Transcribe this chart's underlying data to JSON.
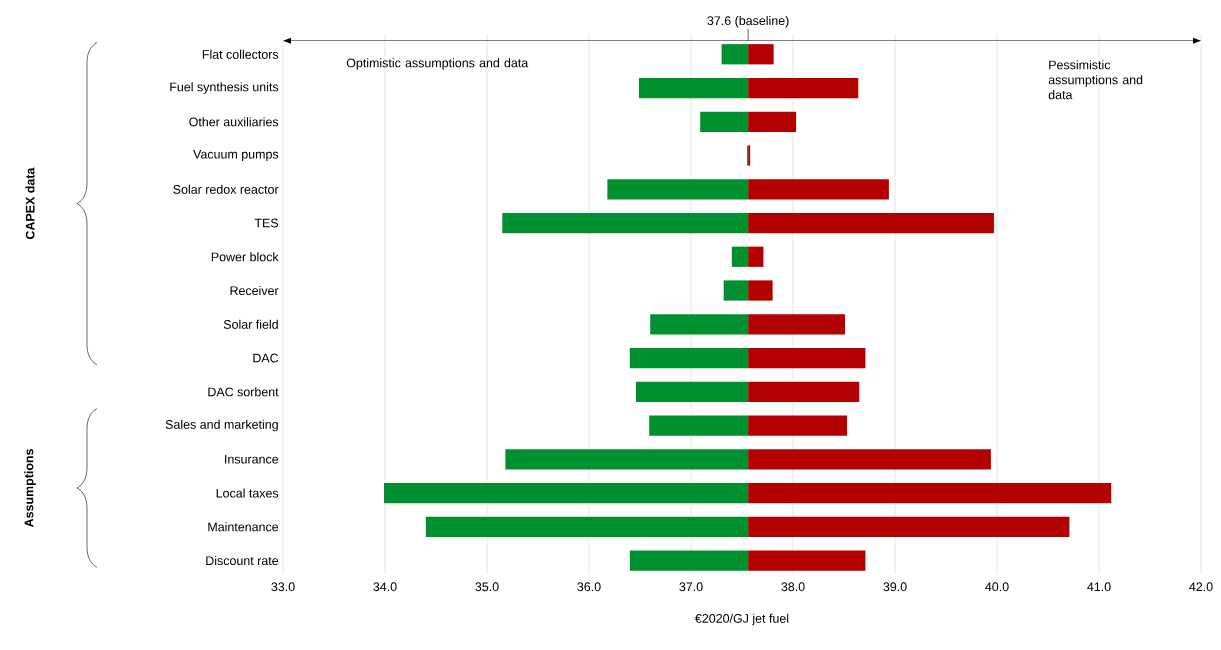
{
  "chart_data": {
    "type": "bar",
    "orientation": "horizontal",
    "xlabel": "€2020/GJ jet fuel",
    "categories": [
      "Flat collectors",
      "Fuel synthesis units",
      "Other auxiliaries",
      "Vacuum pumps",
      "Solar redox reactor",
      "TES",
      "Power block",
      "Receiver",
      "Solar field",
      "DAC",
      "DAC sorbent",
      "Sales and marketing",
      "Insurance",
      "Local taxes",
      "Maintenance",
      "Discount rate"
    ],
    "series": [
      {
        "color": "#009030",
        "base": [
          37.3,
          36.49,
          37.09,
          37.55,
          36.18,
          35.15,
          37.4,
          37.32,
          36.6,
          36.4,
          36.46,
          36.59,
          35.18,
          33.99,
          34.4,
          36.4
        ],
        "values": [
          0.26,
          1.07,
          0.47,
          0.01,
          1.38,
          2.41,
          0.16,
          0.24,
          0.96,
          1.16,
          1.1,
          0.97,
          2.38,
          3.57,
          3.16,
          1.16
        ]
      },
      {
        "color": "#b30000",
        "base": [
          37.56,
          37.56,
          37.56,
          37.56,
          37.56,
          37.56,
          37.56,
          37.56,
          37.56,
          37.56,
          37.56,
          37.56,
          37.56,
          37.56,
          37.56,
          37.56
        ],
        "values": [
          0.25,
          1.08,
          0.47,
          0.02,
          1.38,
          2.41,
          0.15,
          0.24,
          0.95,
          1.15,
          1.09,
          0.97,
          2.38,
          3.56,
          3.15,
          1.15
        ]
      }
    ],
    "xlim": [
      33,
      42
    ],
    "xticks": [
      {
        "value": 33,
        "label": "33.0"
      },
      {
        "value": 34,
        "label": "34.0"
      },
      {
        "value": 35,
        "label": "35.0"
      },
      {
        "value": 36,
        "label": "36.0"
      },
      {
        "value": 37,
        "label": "37.0"
      },
      {
        "value": 38,
        "label": "38.0"
      },
      {
        "value": 39,
        "label": "39.0"
      },
      {
        "value": 40,
        "label": "40.0"
      },
      {
        "value": 41,
        "label": "41.0"
      },
      {
        "value": 42,
        "label": "42.0"
      }
    ],
    "grid": "x",
    "annotations": [
      "37.6 (baseline)",
      "Optimistic assumptions and data",
      "Pessimistic assumptions and data",
      "CAPEX data",
      "Assumptions"
    ]
  }
}
